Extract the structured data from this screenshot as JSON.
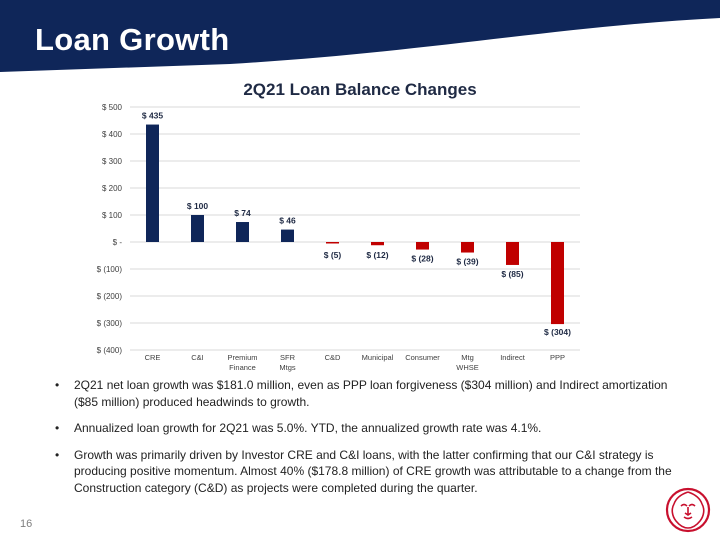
{
  "slide": {
    "title": "Loan Growth",
    "page_number": "16"
  },
  "colors": {
    "header": "#0f2659",
    "positive_bar": "#0f2659",
    "negative_bar": "#c00000",
    "logo": "#c8102e"
  },
  "logo": {
    "icon": "lion-head-icon"
  },
  "chart_data": {
    "type": "bar",
    "title": "2Q21 Loan Balance Changes",
    "categories": [
      "CRE",
      "C&I",
      "Premium Finance",
      "SFR Mtgs",
      "C&D",
      "Municipal",
      "Consumer",
      "Mtg WHSE",
      "Indirect",
      "PPP"
    ],
    "values": [
      435,
      100,
      74,
      46,
      -5,
      -12,
      -28,
      -39,
      -85,
      -304
    ],
    "data_labels": [
      "$ 435",
      "$ 100",
      "$ 74",
      "$ 46",
      "$ (5)",
      "$ (12)",
      "$ (28)",
      "$ (39)",
      "$ (85)",
      "$ (304)"
    ],
    "ylim": [
      -400,
      500
    ],
    "yticks": [
      500,
      400,
      300,
      200,
      100,
      0,
      -100,
      -200,
      -300,
      -400
    ],
    "ytick_labels": [
      "$ 500",
      "$ 400",
      "$ 300",
      "$ 200",
      "$ 100",
      "$ -",
      "$ (100)",
      "$ (200)",
      "$ (300)",
      "$ (400)"
    ],
    "grid": true,
    "legend": false
  },
  "bullets": [
    "2Q21 net loan growth was $181.0 million, even as PPP loan forgiveness ($304 million) and Indirect amortization ($85 million) produced headwinds to growth.",
    "Annualized loan growth for 2Q21 was 5.0%. YTD, the annualized growth rate was 4.1%.",
    "Growth was primarily driven by Investor CRE and C&I loans, with the latter confirming that our C&I strategy is producing positive momentum.  Almost 40% ($178.8 million) of CRE growth was attributable to a change from the Construction category (C&D) as projects were completed during the quarter."
  ]
}
